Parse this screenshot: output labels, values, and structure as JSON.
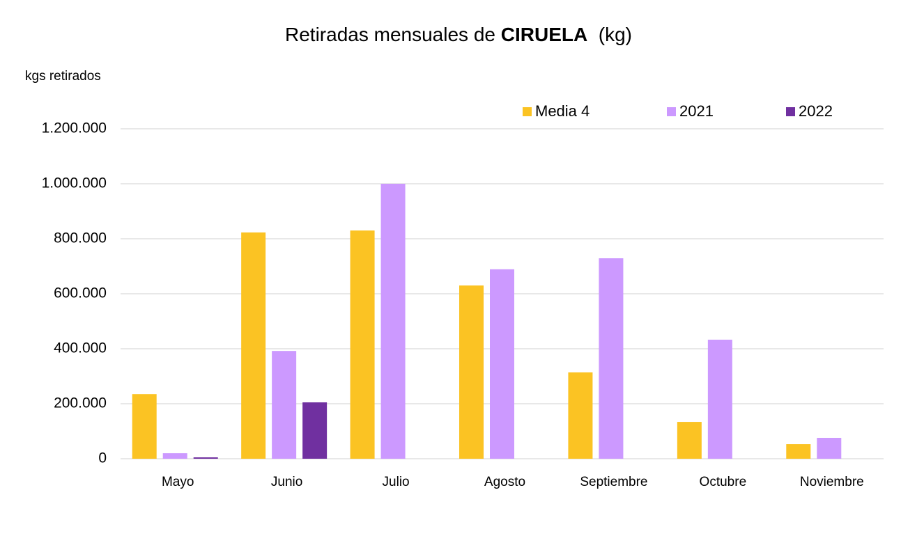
{
  "chart_data": {
    "type": "bar",
    "title": [
      "Retiradas mensuales de ",
      "CIRUELA",
      "  (kg)"
    ],
    "y_label": "kgs retirados",
    "categories": [
      "Mayo",
      "Junio",
      "Julio",
      "Agosto",
      "Septiembre",
      "Octubre",
      "Noviembre"
    ],
    "series": [
      {
        "name": "Media 4",
        "color": "#fbc323",
        "values": [
          235000,
          823000,
          830000,
          630000,
          314000,
          134000,
          53000
        ]
      },
      {
        "name": "2021",
        "color": "#cc99ff",
        "values": [
          20000,
          392000,
          1000000,
          689000,
          729000,
          433000,
          76000
        ]
      },
      {
        "name": "2022",
        "color": "#7030a0",
        "values": [
          5000,
          205000,
          null,
          null,
          null,
          null,
          null
        ]
      }
    ],
    "ylim": [
      0,
      1200000
    ],
    "yticks": [
      0,
      {
        "value": 200000,
        "label": "200.000"
      },
      {
        "value": 400000,
        "label": "400.000"
      },
      {
        "value": 600000,
        "label": "600.000"
      },
      {
        "value": 800000,
        "label": "800.000"
      },
      {
        "value": 1000000,
        "label": "1.000.000"
      },
      {
        "value": 1200000,
        "label": "1.200.000"
      }
    ],
    "grid": true,
    "legend": "top-right"
  }
}
